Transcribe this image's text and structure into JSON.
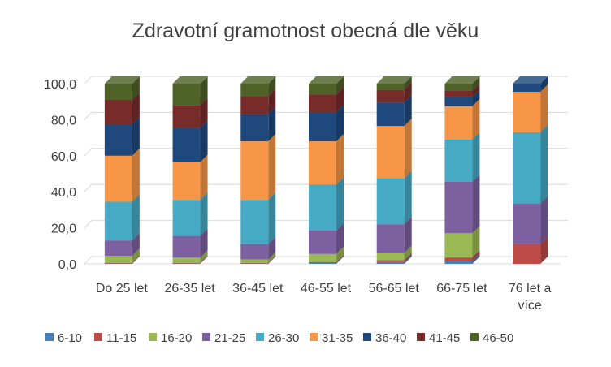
{
  "chart_data": {
    "type": "bar",
    "stacked": true,
    "title": "Zdravotní gramotnost obecná dle věku",
    "categories": [
      "Do 25 let",
      "26-35 let",
      "36-45 let",
      "46-55 let",
      "56-65 let",
      "66-75 let",
      "76 let a více"
    ],
    "category_lines": [
      [
        "Do 25 let"
      ],
      [
        "26-35 let"
      ],
      [
        "36-45 let"
      ],
      [
        "46-55 let"
      ],
      [
        "56-65 let"
      ],
      [
        "66-75 let"
      ],
      [
        "76 let a",
        "více"
      ]
    ],
    "ylim": [
      0,
      100
    ],
    "yticks": [
      "0,0",
      "20,0",
      "40,0",
      "60,0",
      "80,0",
      "100,0"
    ],
    "ytick_values": [
      0,
      20,
      40,
      60,
      80,
      100
    ],
    "grid": true,
    "legend_position": "bottom",
    "series": [
      {
        "name": "6-10",
        "color": "#4A7EBB",
        "values": [
          0.2,
          0.2,
          0.2,
          0.5,
          1.0,
          1.5,
          0.0
        ]
      },
      {
        "name": "11-15",
        "color": "#BE4B48",
        "values": [
          0.3,
          0.3,
          0.3,
          0.5,
          1.0,
          2.0,
          11.0
        ]
      },
      {
        "name": "16-20",
        "color": "#98B954",
        "values": [
          4.0,
          3.0,
          2.0,
          4.5,
          4.0,
          13.5,
          0.0
        ]
      },
      {
        "name": "21-25",
        "color": "#7D60A0",
        "values": [
          8.5,
          12.0,
          8.5,
          13.0,
          16.0,
          28.5,
          22.5
        ]
      },
      {
        "name": "26-30",
        "color": "#46AAC5",
        "values": [
          21.5,
          20.0,
          24.5,
          25.5,
          25.5,
          23.5,
          39.5
        ]
      },
      {
        "name": "31-35",
        "color": "#F79646",
        "values": [
          25.5,
          21.0,
          32.5,
          24.0,
          29.0,
          18.5,
          22.5
        ]
      },
      {
        "name": "36-40",
        "color": "#1F497D",
        "values": [
          17.5,
          19.0,
          15.0,
          16.0,
          13.0,
          5.0,
          4.5
        ]
      },
      {
        "name": "41-45",
        "color": "#772C2A",
        "values": [
          13.5,
          12.5,
          10.0,
          10.0,
          7.0,
          3.5,
          0.0
        ]
      },
      {
        "name": "46-50",
        "color": "#4F6228",
        "values": [
          9.0,
          12.0,
          7.0,
          6.0,
          3.5,
          4.0,
          0.0
        ]
      }
    ]
  }
}
